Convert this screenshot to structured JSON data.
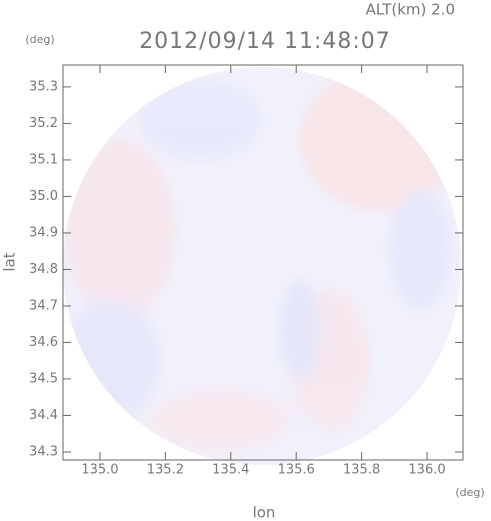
{
  "chart_data": {
    "type": "radar-image",
    "title": "2012/09/14 11:48:07",
    "subtitle": "ALT(km) 2.0",
    "x_label": "lon",
    "y_label": "lat",
    "x_unit": "(deg)",
    "y_unit": "(deg)",
    "xlim": [
      134.887,
      136.11
    ],
    "xticks": [
      {
        "value": 135.0,
        "label": "135.0"
      },
      135.2,
      135.4,
      135.6,
      135.8,
      {
        "value": 136.0,
        "label": "136.0"
      }
    ],
    "ylim": [
      34.278,
      35.36
    ],
    "yticks": [
      34.3,
      34.4,
      34.5,
      34.6,
      34.7,
      34.8,
      34.9,
      {
        "value": 35.0,
        "label": "35.0"
      },
      35.1,
      35.2,
      35.3
    ]
  }
}
